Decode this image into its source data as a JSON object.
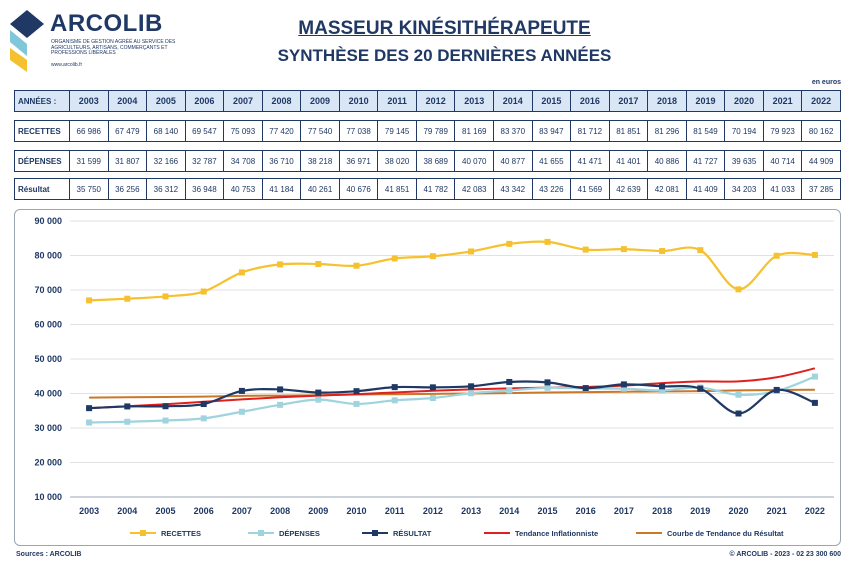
{
  "logo": {
    "name": "ARCOLIB",
    "tagline": "Organisme de gestion agréé au service des agriculteurs, artisans, commerçants et professions libérales",
    "url": "www.arcolib.fr"
  },
  "header": {
    "title": "MASSEUR KINÉSITHÉRAPEUTE",
    "subtitle": "SYNTHÈSE DES 20 DERNIÈRES ANNÉES",
    "unit": "en euros"
  },
  "table": {
    "years_label": "ANNÉES :",
    "rows": [
      {
        "label": "RECETTES",
        "values": [
          "66 986",
          "67 479",
          "68 140",
          "69 547",
          "75 093",
          "77 420",
          "77 540",
          "77 038",
          "79 145",
          "79 789",
          "81 169",
          "83 370",
          "83 947",
          "81 712",
          "81 851",
          "81 296",
          "81 549",
          "70 194",
          "79 923",
          "80 162"
        ]
      },
      {
        "label": "DÉPENSES",
        "values": [
          "31 599",
          "31 807",
          "32 166",
          "32 787",
          "34 708",
          "36 710",
          "38 218",
          "36 971",
          "38 020",
          "38 689",
          "40 070",
          "40 877",
          "41 655",
          "41 471",
          "41 401",
          "40 886",
          "41 727",
          "39 635",
          "40 714",
          "44 909"
        ]
      },
      {
        "label": "Résultat",
        "values": [
          "35 750",
          "36 256",
          "36 312",
          "36 948",
          "40 753",
          "41 184",
          "40 261",
          "40 676",
          "41 851",
          "41 782",
          "42 083",
          "43 342",
          "43 226",
          "41 569",
          "42 639",
          "42 081",
          "41 409",
          "34 203",
          "41 033",
          "37 285"
        ]
      }
    ]
  },
  "chart_data": {
    "type": "line",
    "x": [
      "2003",
      "2004",
      "2005",
      "2006",
      "2007",
      "2008",
      "2009",
      "2010",
      "2011",
      "2012",
      "2013",
      "2014",
      "2015",
      "2016",
      "2017",
      "2018",
      "2019",
      "2020",
      "2021",
      "2022"
    ],
    "ylim": [
      10000,
      90000
    ],
    "yticks": [
      "10 000",
      "20 000",
      "30 000",
      "40 000",
      "50 000",
      "60 000",
      "70 000",
      "80 000",
      "90 000"
    ],
    "ytick_values": [
      10000,
      20000,
      30000,
      40000,
      50000,
      60000,
      70000,
      80000,
      90000
    ],
    "grid": true,
    "legend_position": "bottom",
    "series": [
      {
        "name": "RECETTES",
        "color": "#f5c12e",
        "marker": "square",
        "values": [
          66986,
          67479,
          68140,
          69547,
          75093,
          77420,
          77540,
          77038,
          79145,
          79789,
          81169,
          83370,
          83947,
          81712,
          81851,
          81296,
          81549,
          70194,
          79923,
          80162
        ]
      },
      {
        "name": "DÉPENSES",
        "color": "#9fd3de",
        "marker": "square",
        "values": [
          31599,
          31807,
          32166,
          32787,
          34708,
          36710,
          38218,
          36971,
          38020,
          38689,
          40070,
          40877,
          41655,
          41471,
          41401,
          40886,
          41727,
          39635,
          40714,
          44909
        ]
      },
      {
        "name": "RÉSULTAT",
        "color": "#1f3864",
        "marker": "square",
        "values": [
          35750,
          36256,
          36312,
          36948,
          40753,
          41184,
          40261,
          40676,
          41851,
          41782,
          42083,
          43342,
          43226,
          41569,
          42639,
          42081,
          41409,
          34203,
          41033,
          37285
        ]
      },
      {
        "name": "Tendance Inflationniste",
        "color": "#e02020",
        "marker": "none",
        "values": [
          35750,
          36300,
          36900,
          37600,
          38300,
          38900,
          39400,
          39800,
          40300,
          40800,
          41200,
          41500,
          41700,
          41900,
          42300,
          43000,
          43500,
          43500,
          44700,
          47300
        ]
      },
      {
        "name": "Courbe de Tendance du Résultat",
        "color": "#c87828",
        "marker": "none",
        "values": [
          38800,
          38900,
          39000,
          39100,
          39300,
          39400,
          39500,
          39700,
          39800,
          39900,
          40000,
          40100,
          40300,
          40400,
          40500,
          40600,
          40700,
          40900,
          41000,
          41100
        ]
      }
    ]
  },
  "footer": {
    "source": "Sources : ARCOLIB",
    "copyright": "© ARCOLIB - 2023 - 02 23 300 600"
  }
}
